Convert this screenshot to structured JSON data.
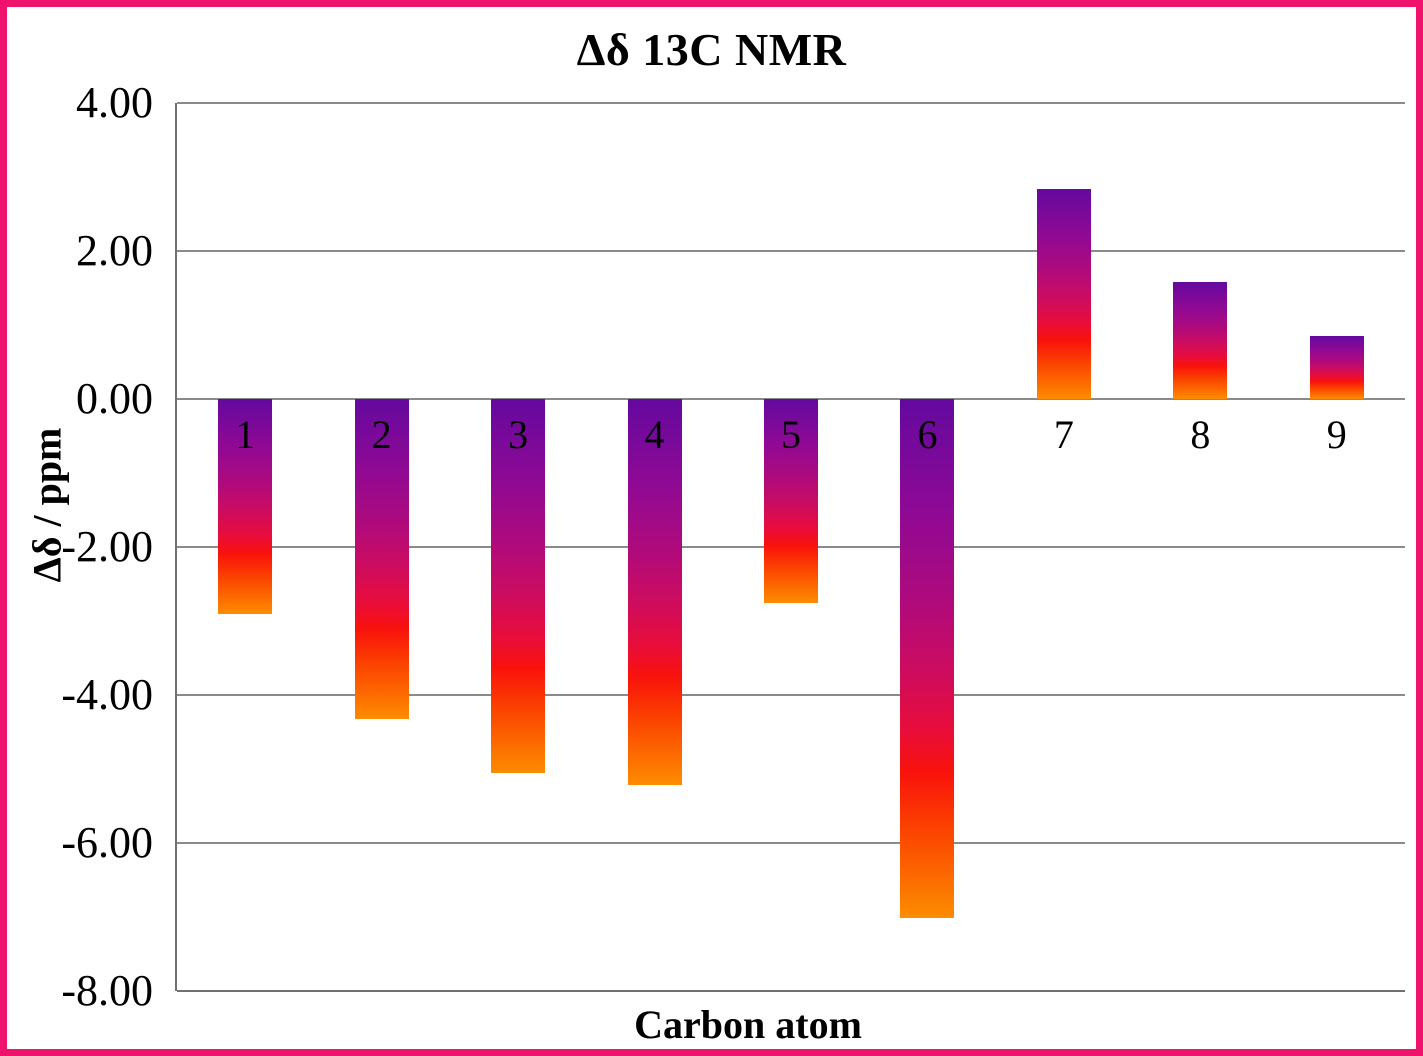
{
  "frame": {
    "border_color": "#EF136E",
    "background_color": "#FFFFFF"
  },
  "chart_data": {
    "type": "bar",
    "title": "Δδ 13C NMR",
    "xlabel": "Carbon atom",
    "ylabel": "Δδ / ppm",
    "categories": [
      "1",
      "2",
      "3",
      "4",
      "5",
      "6",
      "7",
      "8",
      "9"
    ],
    "values": [
      -2.9,
      -4.33,
      -5.06,
      -5.21,
      -2.76,
      -7.01,
      2.84,
      1.58,
      0.85
    ],
    "ylim": [
      -8,
      4
    ],
    "y_ticks": [
      "4.00",
      "2.00",
      "0.00",
      "-2.00",
      "-4.00",
      "-6.00",
      "-8.00"
    ],
    "y_tick_values": [
      4,
      2,
      0,
      -2,
      -4,
      -6,
      -8
    ],
    "grid": "horizontal-on",
    "legend": "none",
    "bar_gradient_stops": [
      "#64099F 0%",
      "#8F0994 22%",
      "#AD0A7E 38%",
      "#CC0C60 52%",
      "#E90D39 64%",
      "#F9120B 72%",
      "#FB4300 83%",
      "#FD8C00 100%"
    ],
    "gridline_color": "#8A8A8A",
    "axis_color": "#707070"
  }
}
